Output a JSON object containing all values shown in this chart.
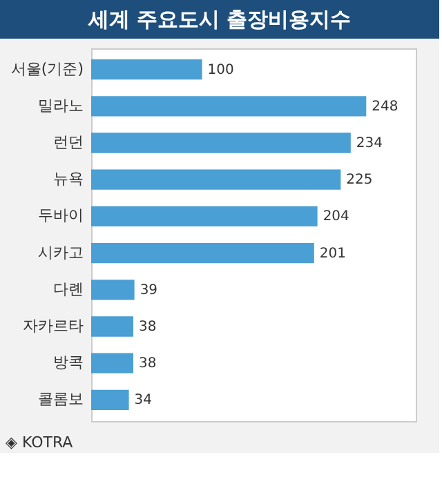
{
  "chart_data": {
    "type": "bar",
    "orientation": "horizontal",
    "title": "세계 주요도시 출장비용지수",
    "categories": [
      "서울(기준)",
      "밀라노",
      "런던",
      "뉴욕",
      "두바이",
      "시카고",
      "다롄",
      "자카르타",
      "방콕",
      "콜롬보"
    ],
    "values": [
      100,
      248,
      234,
      225,
      204,
      201,
      39,
      38,
      38,
      34
    ],
    "color": "#4a9fd4",
    "data_labels": true,
    "annotations": [
      "◈ KOTRA"
    ]
  }
}
